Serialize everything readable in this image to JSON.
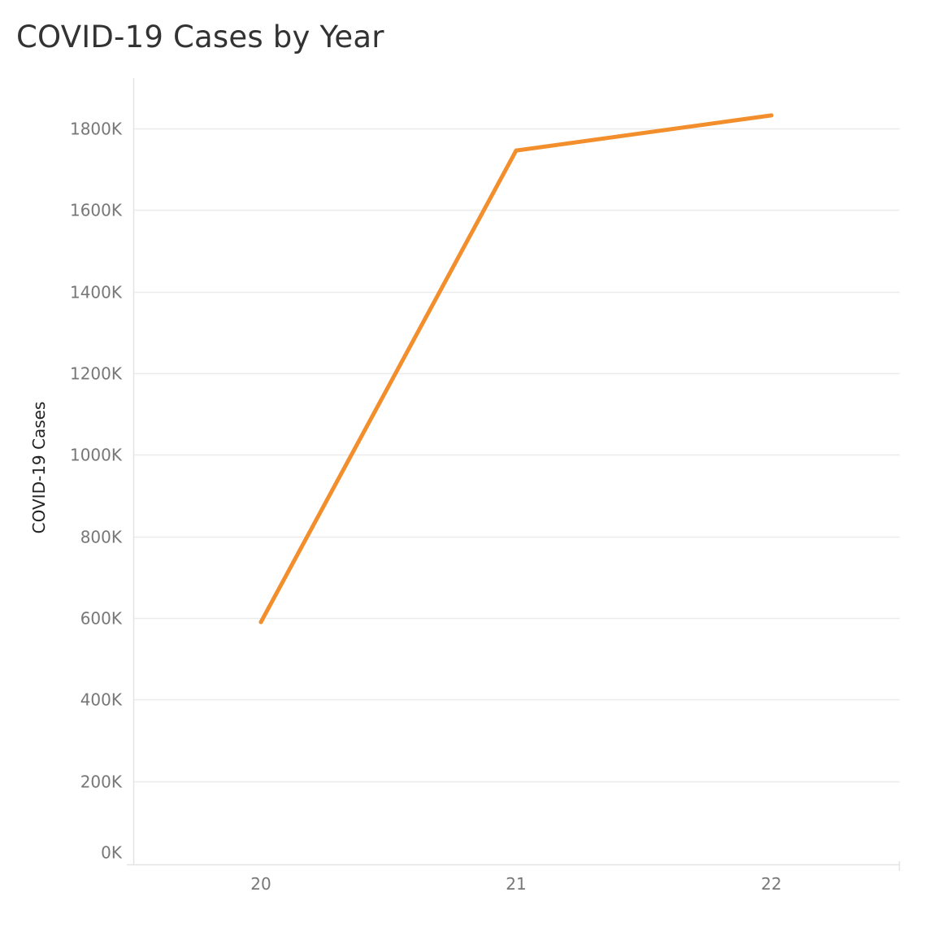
{
  "chart_data": {
    "type": "line",
    "title": "COVID-19 Cases by Year",
    "xlabel": "",
    "ylabel": "COVID-19 Cases",
    "categories": [
      "20",
      "21",
      "22"
    ],
    "series": [
      {
        "values": [
          590000,
          1746000,
          1832000
        ]
      }
    ],
    "y_ticks": [
      {
        "value": 0,
        "label": "0K"
      },
      {
        "value": 200000,
        "label": "200K"
      },
      {
        "value": 400000,
        "label": "400K"
      },
      {
        "value": 600000,
        "label": "600K"
      },
      {
        "value": 800000,
        "label": "800K"
      },
      {
        "value": 1000000,
        "label": "1000K"
      },
      {
        "value": 1200000,
        "label": "1200K"
      },
      {
        "value": 1400000,
        "label": "1400K"
      },
      {
        "value": 1600000,
        "label": "1600K"
      },
      {
        "value": 1800000,
        "label": "1800K"
      }
    ],
    "ylim": [
      0,
      1920000
    ],
    "grid": true,
    "colors": {
      "line": "#f28e2b",
      "grid": "#ebebeb",
      "axis": "#e4e4e4",
      "tick_text": "#777777"
    }
  }
}
